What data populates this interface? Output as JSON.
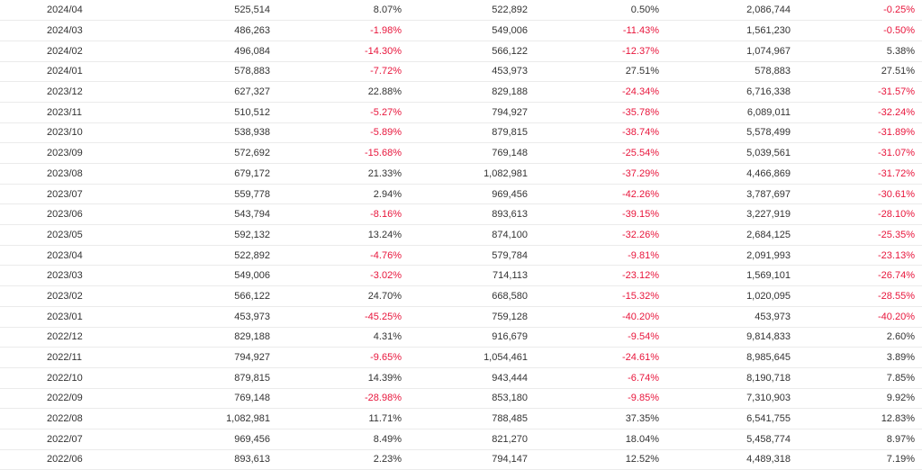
{
  "colors": {
    "text": "#333333",
    "negative": "#e8163c",
    "row_border": "#ebebeb"
  },
  "table": {
    "rows": [
      [
        "2024/04",
        "525,514",
        "8.07%",
        "522,892",
        "0.50%",
        "2,086,744",
        "-0.25%"
      ],
      [
        "2024/03",
        "486,263",
        "-1.98%",
        "549,006",
        "-11.43%",
        "1,561,230",
        "-0.50%"
      ],
      [
        "2024/02",
        "496,084",
        "-14.30%",
        "566,122",
        "-12.37%",
        "1,074,967",
        "5.38%"
      ],
      [
        "2024/01",
        "578,883",
        "-7.72%",
        "453,973",
        "27.51%",
        "578,883",
        "27.51%"
      ],
      [
        "2023/12",
        "627,327",
        "22.88%",
        "829,188",
        "-24.34%",
        "6,716,338",
        "-31.57%"
      ],
      [
        "2023/11",
        "510,512",
        "-5.27%",
        "794,927",
        "-35.78%",
        "6,089,011",
        "-32.24%"
      ],
      [
        "2023/10",
        "538,938",
        "-5.89%",
        "879,815",
        "-38.74%",
        "5,578,499",
        "-31.89%"
      ],
      [
        "2023/09",
        "572,692",
        "-15.68%",
        "769,148",
        "-25.54%",
        "5,039,561",
        "-31.07%"
      ],
      [
        "2023/08",
        "679,172",
        "21.33%",
        "1,082,981",
        "-37.29%",
        "4,466,869",
        "-31.72%"
      ],
      [
        "2023/07",
        "559,778",
        "2.94%",
        "969,456",
        "-42.26%",
        "3,787,697",
        "-30.61%"
      ],
      [
        "2023/06",
        "543,794",
        "-8.16%",
        "893,613",
        "-39.15%",
        "3,227,919",
        "-28.10%"
      ],
      [
        "2023/05",
        "592,132",
        "13.24%",
        "874,100",
        "-32.26%",
        "2,684,125",
        "-25.35%"
      ],
      [
        "2023/04",
        "522,892",
        "-4.76%",
        "579,784",
        "-9.81%",
        "2,091,993",
        "-23.13%"
      ],
      [
        "2023/03",
        "549,006",
        "-3.02%",
        "714,113",
        "-23.12%",
        "1,569,101",
        "-26.74%"
      ],
      [
        "2023/02",
        "566,122",
        "24.70%",
        "668,580",
        "-15.32%",
        "1,020,095",
        "-28.55%"
      ],
      [
        "2023/01",
        "453,973",
        "-45.25%",
        "759,128",
        "-40.20%",
        "453,973",
        "-40.20%"
      ],
      [
        "2022/12",
        "829,188",
        "4.31%",
        "916,679",
        "-9.54%",
        "9,814,833",
        "2.60%"
      ],
      [
        "2022/11",
        "794,927",
        "-9.65%",
        "1,054,461",
        "-24.61%",
        "8,985,645",
        "3.89%"
      ],
      [
        "2022/10",
        "879,815",
        "14.39%",
        "943,444",
        "-6.74%",
        "8,190,718",
        "7.85%"
      ],
      [
        "2022/09",
        "769,148",
        "-28.98%",
        "853,180",
        "-9.85%",
        "7,310,903",
        "9.92%"
      ],
      [
        "2022/08",
        "1,082,981",
        "11.71%",
        "788,485",
        "37.35%",
        "6,541,755",
        "12.83%"
      ],
      [
        "2022/07",
        "969,456",
        "8.49%",
        "821,270",
        "18.04%",
        "5,458,774",
        "8.97%"
      ],
      [
        "2022/06",
        "893,613",
        "2.23%",
        "794,147",
        "12.52%",
        "4,489,318",
        "7.19%"
      ]
    ]
  }
}
